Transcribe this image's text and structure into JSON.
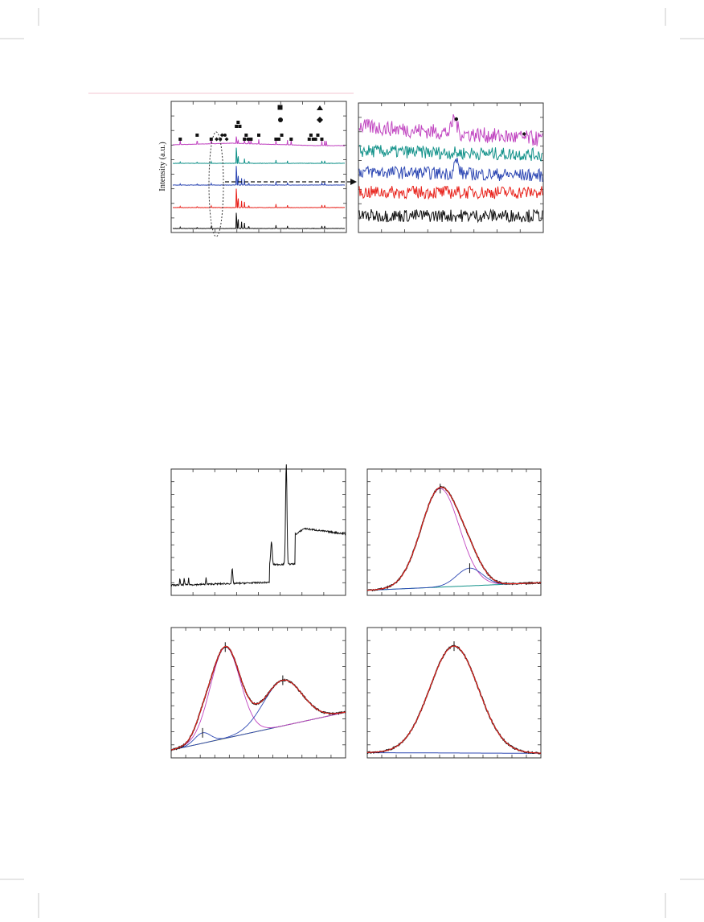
{
  "page": {
    "header_rule_color": "#f3c6d2",
    "crop_mark_color": "#bdbdbd"
  },
  "chart_data": [
    {
      "type": "line",
      "panel": "xrd-overview",
      "ylabel": "Intensity (a.u.)",
      "xlabel": "",
      "grid": false,
      "series": [
        {
          "color": "#c044c0",
          "peaks": [
            [
              2.6,
              1
            ],
            [
              8.5,
              1
            ],
            [
              13.4,
              1.3
            ],
            [
              22.2,
              2.0
            ],
            [
              22.8,
              0.8
            ],
            [
              25,
              1.3
            ],
            [
              26.5,
              1.1
            ],
            [
              27.3,
              0.9
            ],
            [
              30,
              1
            ],
            [
              36,
              1
            ],
            [
              40,
              1
            ],
            [
              41.3,
              1
            ],
            [
              52,
              1
            ],
            [
              53,
              1
            ],
            [
              53.6,
              1
            ]
          ]
        },
        {
          "color": "#13928a",
          "peaks": [
            [
              2.6,
              0.3
            ],
            [
              8.5,
              0.3
            ],
            [
              13.4,
              0.4
            ],
            [
              22.2,
              4.5
            ],
            [
              22.8,
              2.0
            ],
            [
              25,
              1.0
            ],
            [
              26.5,
              0.6
            ],
            [
              36,
              0.7
            ],
            [
              40,
              0.5
            ],
            [
              52,
              0.5
            ],
            [
              53,
              0.5
            ]
          ]
        },
        {
          "color": "#2f49b4",
          "peaks": [
            [
              2.6,
              0.3
            ],
            [
              8.5,
              0.3
            ],
            [
              13.4,
              0.4
            ],
            [
              22.2,
              5.5
            ],
            [
              22.8,
              2.6
            ],
            [
              24,
              1.4
            ],
            [
              25,
              1.2
            ],
            [
              26.5,
              0.6
            ],
            [
              36,
              0.7
            ],
            [
              40,
              0.5
            ],
            [
              52,
              0.5
            ],
            [
              53,
              0.5
            ]
          ]
        },
        {
          "color": "#e8231c",
          "peaks": [
            [
              2.6,
              0.3
            ],
            [
              8.5,
              0.3
            ],
            [
              13.4,
              0.4
            ],
            [
              22.2,
              5.5
            ],
            [
              22.8,
              2.6
            ],
            [
              24,
              1.4
            ],
            [
              25,
              1.2
            ],
            [
              26.5,
              0.6
            ],
            [
              36,
              0.7
            ],
            [
              40,
              0.5
            ],
            [
              52,
              0.5
            ],
            [
              53,
              0.5
            ]
          ]
        },
        {
          "color": "#111111",
          "peaks": [
            [
              2.6,
              0.3
            ],
            [
              8.5,
              0.3
            ],
            [
              13.4,
              0.4
            ],
            [
              22.2,
              4.5
            ],
            [
              22.8,
              2.6
            ],
            [
              24,
              1.4
            ],
            [
              25,
              1.2
            ],
            [
              26.5,
              0.6
            ],
            [
              36,
              0.7
            ],
            [
              40,
              0.5
            ],
            [
              52,
              0.5
            ],
            [
              53,
              0.5
            ]
          ]
        }
      ],
      "phase_markers": [
        {
          "marker": "square",
          "positions": [
            2.6,
            8.5,
            13.4,
            22.2,
            22.8,
            23.4,
            25,
            25.6,
            26.5,
            27.3,
            30,
            36,
            37,
            38,
            41.3,
            47.6,
            48.2,
            49,
            49.8,
            50.6,
            52
          ]
        },
        {
          "marker": "circle",
          "positions": [
            16.6,
            18.2,
            26.2
          ]
        },
        {
          "marker": "diamond",
          "positions": [
            15.3,
            17.2,
            18.8
          ]
        }
      ]
    },
    {
      "type": "line",
      "panel": "xrd-zoom",
      "xlabel": "",
      "ylabel": "",
      "grid": false,
      "series": [
        {
          "color": "#c044c0",
          "baseline": 0.82,
          "trend": -0.1,
          "noise": 0.06,
          "peaks": [
            [
              0.52,
              0.12
            ]
          ]
        },
        {
          "color": "#13928a",
          "baseline": 0.63,
          "trend": -0.03,
          "noise": 0.05,
          "peaks": []
        },
        {
          "color": "#2f49b4",
          "baseline": 0.47,
          "trend": -0.03,
          "noise": 0.05,
          "peaks": [
            [
              0.53,
              0.1
            ]
          ]
        },
        {
          "color": "#e8231c",
          "baseline": 0.31,
          "trend": 0.0,
          "noise": 0.05,
          "peaks": []
        },
        {
          "color": "#111111",
          "baseline": 0.13,
          "trend": 0.0,
          "noise": 0.05,
          "peaks": []
        }
      ],
      "annotations": [
        {
          "marker": "circle",
          "x": 0.53
        },
        {
          "marker": "diamond",
          "x": 0.9
        }
      ]
    },
    {
      "type": "line",
      "panel": "xas-spectrum",
      "xlabel": "",
      "ylabel": "",
      "series": [
        {
          "color": "#111111"
        }
      ]
    },
    {
      "type": "line",
      "panel": "xps-fit-1",
      "xlabel": "",
      "ylabel": "",
      "components": [
        {
          "color": "#c044c0",
          "center": 0.42,
          "height": 0.78,
          "width": 0.11
        },
        {
          "color": "#2f49b4",
          "center": 0.59,
          "height": 0.14,
          "width": 0.075
        }
      ],
      "background": {
        "color": "#13928a",
        "start": 0.04,
        "end": 0.1
      },
      "series": [
        {
          "name": "",
          "color": "#111111"
        },
        {
          "name": "",
          "color": "#e8231c"
        }
      ]
    },
    {
      "type": "line",
      "panel": "xps-fit-2",
      "xlabel": "",
      "ylabel": "",
      "components": [
        {
          "color": "#2f49b4",
          "center": 0.18,
          "height": 0.08,
          "width": 0.045
        },
        {
          "color": "#c044c0",
          "center": 0.31,
          "height": 0.7,
          "width": 0.085
        },
        {
          "color": "#2f49b4",
          "center": 0.64,
          "height": 0.35,
          "width": 0.11
        }
      ],
      "background": {
        "color": "#6b7a2a",
        "start": 0.06,
        "end": 0.35
      },
      "series": [
        {
          "name": "",
          "color": "#111111"
        },
        {
          "name": "",
          "color": "#e8231c"
        }
      ]
    },
    {
      "type": "line",
      "panel": "xps-fit-3",
      "xlabel": "",
      "ylabel": "",
      "components": [
        {
          "color": "#c044c0",
          "center": 0.5,
          "height": 0.82,
          "width": 0.14
        }
      ],
      "background": {
        "color": "#2f49b4",
        "start": 0.04,
        "end": 0.035
      },
      "series": [
        {
          "name": "",
          "color": "#111111"
        },
        {
          "name": "",
          "color": "#e8231c"
        }
      ]
    }
  ]
}
